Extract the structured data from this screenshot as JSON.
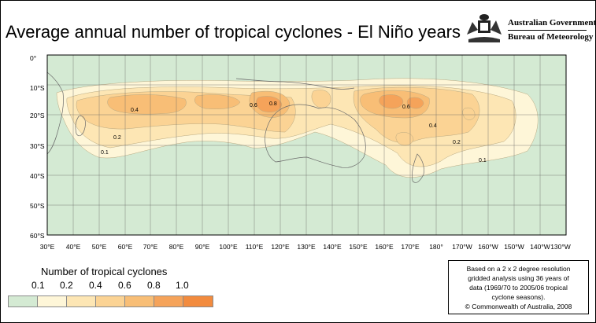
{
  "title": "Average annual number of tropical cyclones - El Niño years",
  "organisation": {
    "line1": "Australian Government",
    "line2": "Bureau of Meteorology"
  },
  "map": {
    "lat_labels": [
      "0°",
      "10°S",
      "20°S",
      "30°S",
      "40°S",
      "50°S",
      "60°S"
    ],
    "lon_labels": [
      "30°E",
      "40°E",
      "50°E",
      "60°E",
      "70°E",
      "80°E",
      "90°E",
      "100°E",
      "110°E",
      "120°E",
      "130°E",
      "140°E",
      "150°E",
      "160°E",
      "170°E",
      "180°",
      "170°W",
      "160°W",
      "150°W",
      "140°W",
      "130°W"
    ],
    "contour_labels": [
      "0.4",
      "0.2",
      "0.1",
      "0.6",
      "0.8",
      "0.6",
      "0.4",
      "0.2",
      "0.1"
    ],
    "colors": {
      "land_background": "#d4ead3",
      "level_0_1": "#fef6d8",
      "level_0_2": "#fde6b4",
      "level_0_4": "#fbd394",
      "level_0_6": "#f8be76",
      "level_0_8": "#f5a35a",
      "level_1_0": "#f28b3e"
    }
  },
  "legend": {
    "title": "Number of tropical cyclones",
    "ticks": [
      "0.1",
      "0.2",
      "0.4",
      "0.6",
      "0.8",
      "1.0"
    ],
    "colors": [
      "#d4ead3",
      "#fef6d8",
      "#fde6b4",
      "#fbd394",
      "#f8be76",
      "#f5a35a",
      "#f28b3e"
    ]
  },
  "note": {
    "line1": "Based on a 2 x 2 degree resolution",
    "line2": "gridded analysis using 36 years of",
    "line3": "data (1969/70 to 2005/06 tropical",
    "line4": "cyclone seasons).",
    "copyright": "© Commonwealth of Australia, 2008"
  }
}
